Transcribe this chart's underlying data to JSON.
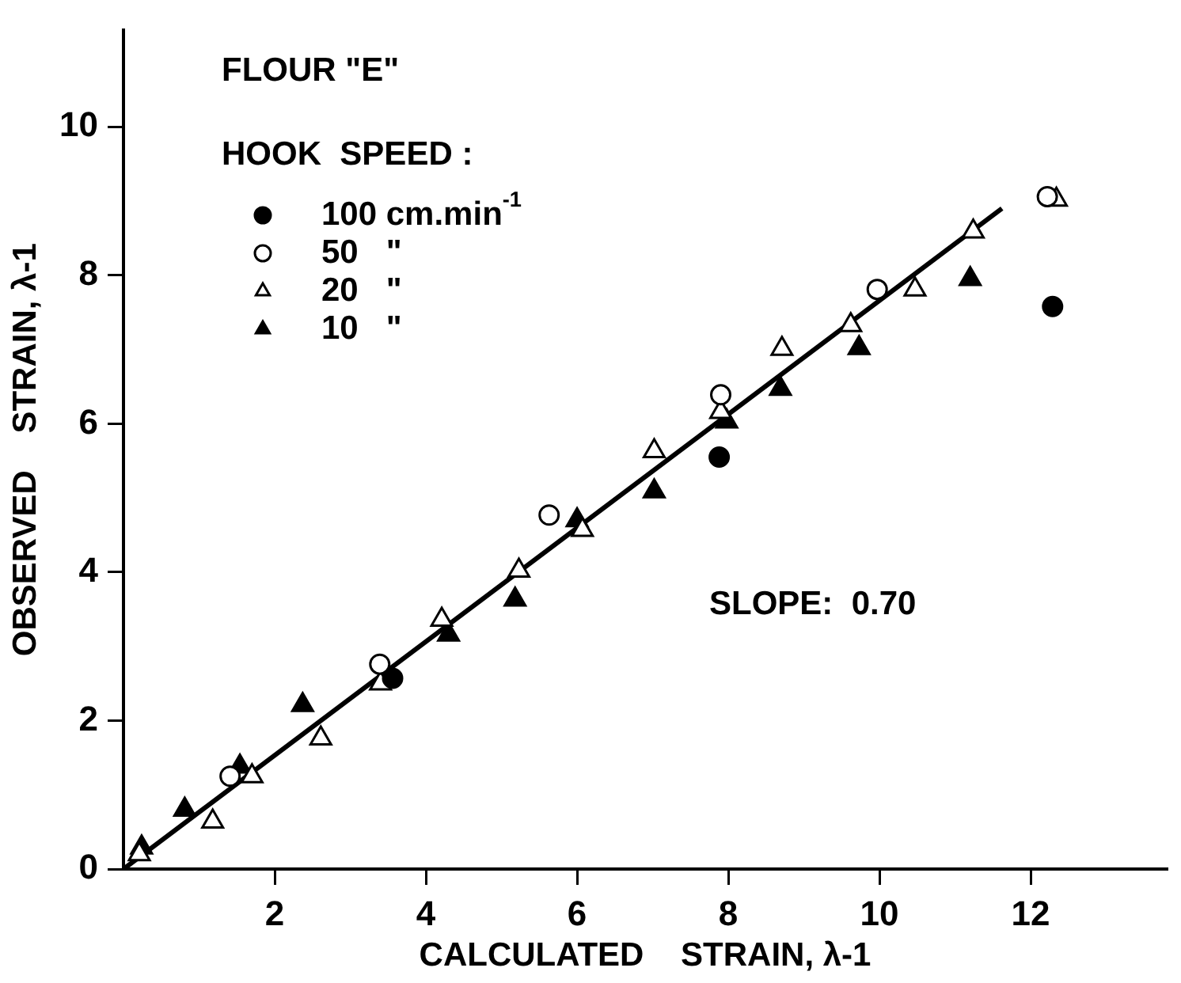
{
  "chart_data": {
    "type": "scatter",
    "title": "FLOUR \"E\"",
    "xlabel": "CALCULATED    STRAIN, λ-1",
    "ylabel": "OBSERVED    STRAIN, λ-1",
    "legend_title": "HOOK  SPEED :",
    "legend": "top left",
    "grid": false,
    "xlim": [
      0,
      13.8
    ],
    "xticks": [
      2,
      4,
      6,
      8,
      10,
      12
    ],
    "ylim": [
      0,
      11.3
    ],
    "yticks": [
      0,
      2,
      4,
      6,
      8,
      10
    ],
    "annotations": [
      "SLOPE:  0.70"
    ],
    "series": [
      {
        "name": "100 cm.min$^{-1}$",
        "color": "#000000",
        "marker": "circle",
        "x": [
          3.56,
          7.88,
          12.29
        ],
        "values": [
          2.57,
          5.55,
          7.58
        ]
      },
      {
        "name": "50   \"",
        "color": "#ffffff",
        "marker": "circle",
        "x": [
          1.41,
          3.39,
          5.63,
          7.9,
          9.97,
          12.22
        ],
        "values": [
          1.25,
          2.76,
          4.77,
          6.39,
          7.81,
          9.06
        ]
      },
      {
        "name": "20   \"",
        "color": "#ffffff",
        "marker": "triangle",
        "x": [
          0.21,
          1.18,
          1.7,
          2.61,
          3.4,
          4.21,
          5.23,
          6.07,
          7.02,
          7.9,
          8.71,
          9.62,
          10.47,
          11.24,
          12.34
        ],
        "values": [
          0.2,
          0.64,
          1.25,
          1.76,
          2.5,
          3.36,
          4.02,
          4.57,
          5.63,
          6.16,
          7.01,
          7.33,
          7.81,
          8.59,
          9.02
        ]
      },
      {
        "name": "10   \"",
        "color": "#000000",
        "marker": "triangle",
        "x": [
          0.24,
          0.81,
          1.54,
          2.37,
          4.3,
          5.18,
          6.0,
          7.02,
          7.98,
          8.69,
          9.73,
          11.2
        ],
        "values": [
          0.29,
          0.8,
          1.38,
          2.21,
          3.16,
          3.63,
          4.7,
          5.09,
          6.03,
          6.47,
          7.02,
          7.95
        ]
      },
      {
        "type": "line",
        "color": "#000000",
        "marker": "none",
        "line_style": "solid",
        "x": [
          0,
          11.62
        ],
        "values": [
          0,
          8.9
        ]
      }
    ]
  }
}
